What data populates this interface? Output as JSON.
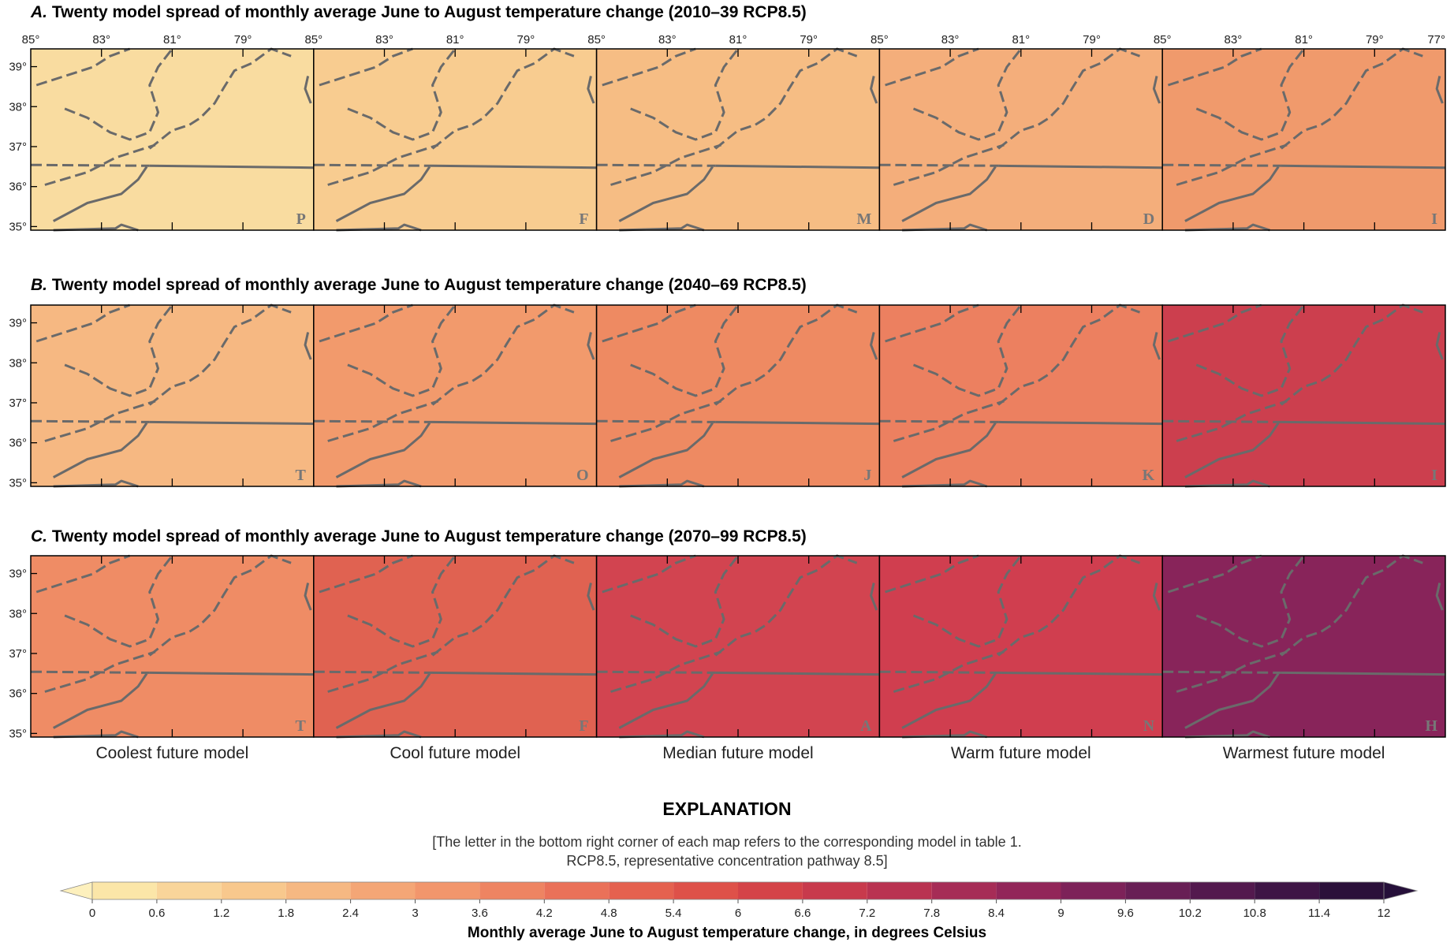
{
  "panels": [
    {
      "label": "A.",
      "title": "Twenty model spread of monthly average June to August temperature change (2010–39 RCP8.5)",
      "maps": [
        {
          "letter": "P",
          "color": "#f9dca0"
        },
        {
          "letter": "F",
          "color": "#f8cc90"
        },
        {
          "letter": "M",
          "color": "#f6bd84"
        },
        {
          "letter": "D",
          "color": "#f4ae7b"
        },
        {
          "letter": "I",
          "color": "#f09a6c"
        }
      ]
    },
    {
      "label": "B.",
      "title": "Twenty model spread of monthly average June to August temperature change (2040–69 RCP8.5)",
      "maps": [
        {
          "letter": "T",
          "color": "#f6b882"
        },
        {
          "letter": "O",
          "color": "#f29a6c"
        },
        {
          "letter": "J",
          "color": "#ee8a62"
        },
        {
          "letter": "K",
          "color": "#ec8060"
        },
        {
          "letter": "I",
          "color": "#cc3f4e"
        }
      ]
    },
    {
      "label": "C.",
      "title": "Twenty model spread of monthly average June to August temperature change (2070–99 RCP8.5)",
      "maps": [
        {
          "letter": "T",
          "color": "#ef8c65"
        },
        {
          "letter": "F",
          "color": "#e06251"
        },
        {
          "letter": "A",
          "color": "#d24450"
        },
        {
          "letter": "N",
          "color": "#d03e4f"
        },
        {
          "letter": "H",
          "color": "#88245a"
        }
      ]
    }
  ],
  "column_labels": [
    "Coolest future model",
    "Cool future model",
    "Median future model",
    "Warm future model",
    "Warmest future model"
  ],
  "lon_labels": [
    "85°",
    "83°",
    "81°",
    "79°",
    "85°",
    "83°",
    "81°",
    "79°",
    "85°",
    "83°",
    "81°",
    "79°",
    "85°",
    "83°",
    "81°",
    "79°",
    "85°",
    "83°",
    "81°",
    "79°",
    "77°"
  ],
  "lat_labels": [
    "39°",
    "38°",
    "37°",
    "36°",
    "35°"
  ],
  "explanation": {
    "heading": "EXPLANATION",
    "note": [
      "[The letter in the bottom right corner of each map refers to the corresponding model in table 1.",
      "RCP8.5, representative concentration pathway 8.5]"
    ],
    "colorbar": {
      "ticks": [
        0,
        0.6,
        1.2,
        1.8,
        2.4,
        3,
        3.6,
        4.2,
        4.8,
        5.4,
        6,
        6.6,
        7.2,
        7.8,
        8.4,
        9,
        9.6,
        10.2,
        10.8,
        11.4,
        12
      ],
      "colors": [
        "#fbe6a8",
        "#f9d59a",
        "#f8c88d",
        "#f6b882",
        "#f4a676",
        "#f2966c",
        "#ee8462",
        "#ea7159",
        "#e5614f",
        "#de5149",
        "#d44348",
        "#c83a4c",
        "#b93351",
        "#a62c56",
        "#922659",
        "#7d2259",
        "#681f55",
        "#53194e",
        "#3e1545",
        "#2b103a"
      ],
      "under_color": "#fdf0bd",
      "over_color": "#26103a",
      "label": "Monthly average June to August temperature change, in degrees Celsius"
    }
  }
}
